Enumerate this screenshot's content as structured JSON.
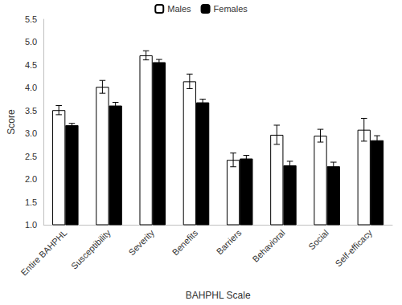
{
  "chart_data": {
    "type": "bar",
    "x_label": "BAHPHL Scale",
    "y_label": "Score",
    "categories": [
      "Entire BAHPHL",
      "Susceptibility",
      "Severity",
      "Benefits",
      "Barriers",
      "Behavioral",
      "Social",
      "Self-efficacy"
    ],
    "series": [
      {
        "name": "Males",
        "color": "#ffffff",
        "values": [
          3.51,
          4.02,
          4.71,
          4.14,
          2.42,
          2.97,
          2.95,
          3.08
        ],
        "errors": [
          0.1,
          0.14,
          0.1,
          0.16,
          0.15,
          0.21,
          0.14,
          0.25
        ]
      },
      {
        "name": "Females",
        "color": "#000000",
        "values": [
          3.18,
          3.61,
          4.56,
          3.68,
          2.45,
          2.3,
          2.28,
          2.85
        ],
        "errors": [
          0.04,
          0.07,
          0.06,
          0.07,
          0.07,
          0.09,
          0.09,
          0.1
        ]
      }
    ],
    "ylim": [
      1.0,
      5.5
    ],
    "yticks": [
      {
        "value": 1,
        "label": "1.0"
      },
      {
        "value": 1.5,
        "label": "1.5"
      },
      {
        "value": 2,
        "label": "2.0"
      },
      {
        "value": 2.5,
        "label": "2.5"
      },
      {
        "value": 3,
        "label": "3.0"
      },
      {
        "value": 3.5,
        "label": "3.5"
      },
      {
        "value": 4,
        "label": "4.0"
      },
      {
        "value": 4.5,
        "label": "4.5"
      },
      {
        "value": 5,
        "label": "5.0"
      },
      {
        "value": 5.5,
        "label": "5.5"
      }
    ],
    "grid": false,
    "legend": "top"
  }
}
